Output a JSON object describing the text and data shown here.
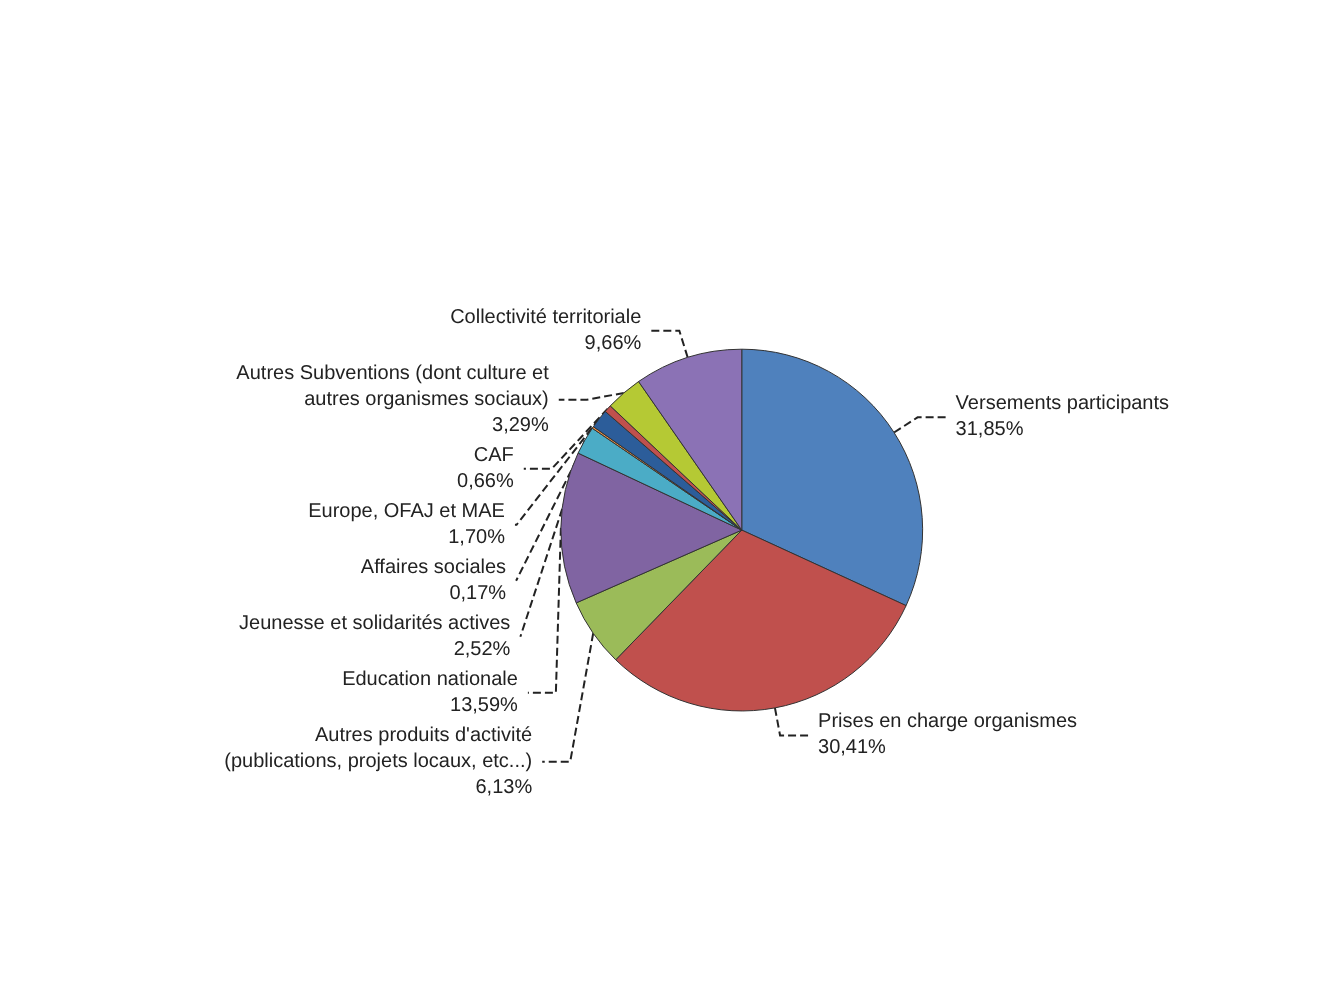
{
  "chart_data": {
    "type": "pie",
    "categories": [
      "Versements participants",
      "Prises en charge organismes",
      "Autres produits d'activité\n(publications, projets locaux, etc...)",
      "Education nationale",
      "Jeunesse et solidarités actives",
      "Affaires sociales",
      "Europe, OFAJ et MAE",
      "CAF",
      "Autres Subventions (dont culture et\nautres organismes sociaux)",
      "Collectivité territoriale"
    ],
    "values": [
      31.85,
      30.41,
      6.13,
      13.59,
      2.52,
      0.17,
      1.7,
      0.66,
      3.29,
      9.66
    ],
    "value_labels": [
      "31,85%",
      "30,41%",
      "6,13%",
      "13,59%",
      "2,52%",
      "0,17%",
      "1,70%",
      "0,66%",
      "3,29%",
      "9,66%"
    ],
    "colors": [
      "#4f81bd",
      "#c0504d",
      "#9bbb59",
      "#8064a2",
      "#4bacc6",
      "#f79646",
      "#2c5d9a",
      "#c0504d",
      "#b5c934",
      "#8b72b5"
    ]
  }
}
